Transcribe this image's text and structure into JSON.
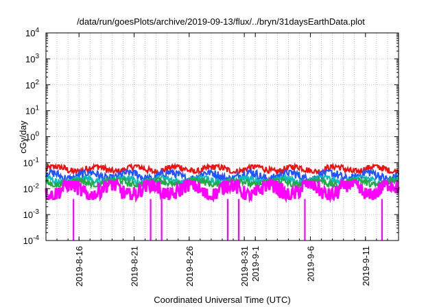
{
  "chart_data": {
    "type": "line",
    "title": "/data/run/goesPlots/archive/2019-09-13/flux/../bryn/31daysEarthData.plot",
    "xlabel": "Coordinated Universal Time (UTC)",
    "ylabel": "cGy/day",
    "yscale": "log",
    "ylim": [
      0.0001,
      10000
    ],
    "xlim": [
      "2019-08-13",
      "2019-09-14"
    ],
    "grid": true,
    "y_ticks": [
      {
        "value": 0.0001,
        "mantissa": "10",
        "exp": "-4"
      },
      {
        "value": 0.001,
        "mantissa": "10",
        "exp": "-3"
      },
      {
        "value": 0.01,
        "mantissa": "10",
        "exp": "-2"
      },
      {
        "value": 0.1,
        "mantissa": "10",
        "exp": "-1"
      },
      {
        "value": 1,
        "mantissa": "10",
        "exp": "0"
      },
      {
        "value": 10,
        "mantissa": "10",
        "exp": "1"
      },
      {
        "value": 100,
        "mantissa": "10",
        "exp": "2"
      },
      {
        "value": 1000,
        "mantissa": "10",
        "exp": "3"
      },
      {
        "value": 10000,
        "mantissa": "10",
        "exp": "4"
      }
    ],
    "x_ticks": [
      "2019-8-16",
      "2019-8-21",
      "2019-8-26",
      "2019-8-31",
      "2019-9-1",
      "2019-9-6",
      "2019-9-11"
    ],
    "x_tick_dates": [
      "2019-08-16",
      "2019-08-21",
      "2019-08-26",
      "2019-08-31",
      "2019-09-01",
      "2019-09-06",
      "2019-09-11"
    ],
    "series": [
      {
        "color": "#ee1111",
        "typical_range": [
          0.04,
          0.08
        ]
      },
      {
        "color": "#2255ff",
        "typical_range": [
          0.02,
          0.05
        ]
      },
      {
        "color": "#11bbbb",
        "typical_range": [
          0.015,
          0.03
        ]
      },
      {
        "color": "#22aa44",
        "typical_range": [
          0.012,
          0.025
        ]
      },
      {
        "color": "#ff00ff",
        "typical_range": [
          0.004,
          0.02
        ]
      }
    ],
    "magenta_dropouts": [
      "2019-08-15",
      "2019-08-22",
      "2019-08-23",
      "2019-08-29",
      "2019-08-30",
      "2019-09-05",
      "2019-09-12"
    ]
  }
}
